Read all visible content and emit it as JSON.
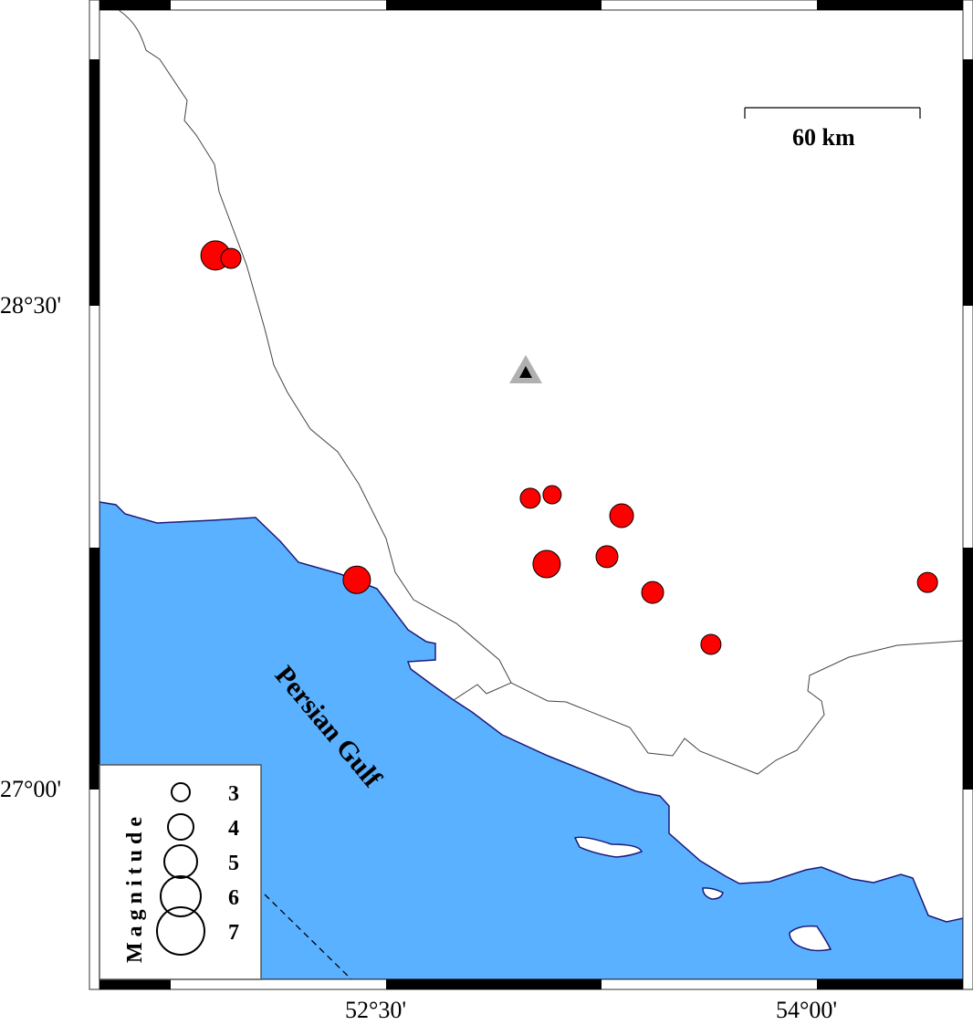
{
  "map": {
    "extent": {
      "lon": [
        51.5,
        54.51
      ],
      "lat": [
        26.41,
        29.42
      ]
    },
    "colors": {
      "water": "#5ab1ff",
      "land": "#ffffff",
      "coast": "#1a1a7a",
      "event": "#ff0000",
      "station_outer": "#b0b0b0",
      "station_inner": "#000000"
    },
    "axis": {
      "x_ticks": [
        {
          "value": 52.5,
          "label": "52°30'"
        },
        {
          "value": 54.0,
          "label": "54°00'"
        }
      ],
      "y_ticks": [
        {
          "value": 28.5,
          "label": "28°30'"
        },
        {
          "value": 27.0,
          "label": "27°00'"
        }
      ]
    },
    "scale_bar": {
      "label": "60 km"
    },
    "water_label": "Persian Gulf",
    "station": {
      "lon": 52.986,
      "lat": 28.288,
      "icon": "triangle-icon"
    },
    "events": [
      {
        "lon": 51.906,
        "lat": 28.656,
        "mag": 4.5
      },
      {
        "lon": 51.96,
        "lat": 28.647,
        "mag": 3.25
      },
      {
        "lon": 52.398,
        "lat": 27.65,
        "mag": 4.25
      },
      {
        "lon": 53.002,
        "lat": 27.903,
        "mag": 3.25
      },
      {
        "lon": 53.078,
        "lat": 27.914,
        "mag": 3.0
      },
      {
        "lon": 53.32,
        "lat": 27.849,
        "mag": 3.75
      },
      {
        "lon": 53.059,
        "lat": 27.699,
        "mag": 4.25
      },
      {
        "lon": 53.269,
        "lat": 27.722,
        "mag": 3.5
      },
      {
        "lon": 53.428,
        "lat": 27.611,
        "mag": 3.5
      },
      {
        "lon": 53.631,
        "lat": 27.45,
        "mag": 3.25
      },
      {
        "lon": 54.385,
        "lat": 27.642,
        "mag": 3.25
      }
    ],
    "legend": {
      "title": "Magnitude",
      "entries": [
        {
          "mag": 3,
          "label": "3"
        },
        {
          "mag": 4,
          "label": "4"
        },
        {
          "mag": 5,
          "label": "5"
        },
        {
          "mag": 6,
          "label": "6"
        },
        {
          "mag": 7,
          "label": "7"
        }
      ]
    }
  }
}
